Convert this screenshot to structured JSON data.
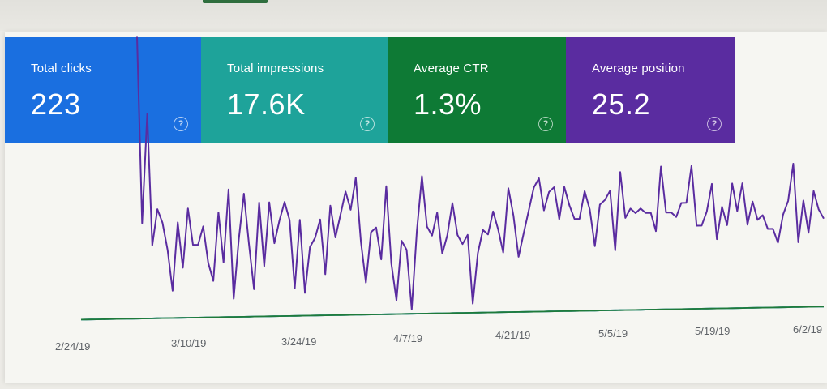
{
  "summary_cards": [
    {
      "label": "Total clicks",
      "value": "223",
      "color": "#1a6fe0"
    },
    {
      "label": "Total impressions",
      "value": "17.6K",
      "color": "#1ea39a"
    },
    {
      "label": "Average CTR",
      "value": "1.3%",
      "color": "#0e7a35"
    },
    {
      "label": "Average position",
      "value": "25.2",
      "color": "#5a2ca0"
    }
  ],
  "help_glyph": "?",
  "chart_data": {
    "type": "line",
    "x_tick_labels": [
      "2/24/19",
      "3/10/19",
      "3/24/19",
      "4/7/19",
      "4/21/19",
      "5/5/19",
      "5/19/19",
      "6/2/19"
    ],
    "y_axis": "none",
    "grid": false,
    "series": [
      {
        "color": "#5a2ca0",
        "values": [
          null,
          null,
          null,
          null,
          null,
          null,
          null,
          null,
          null,
          null,
          null,
          63,
          22,
          46,
          17,
          25,
          22,
          16,
          7,
          22,
          12,
          25,
          17,
          17,
          21,
          13,
          9,
          24,
          13,
          29,
          5,
          18,
          28,
          17,
          7,
          26,
          12,
          26,
          17,
          22,
          26,
          22,
          7,
          22,
          6,
          16,
          18,
          22,
          10,
          25,
          18,
          23,
          28,
          24,
          31,
          17,
          8,
          19,
          20,
          13,
          29,
          12,
          4,
          17,
          15,
          2,
          19,
          31,
          20,
          18,
          23,
          14,
          18,
          25,
          18,
          16,
          18,
          3,
          14,
          19,
          18,
          23,
          19,
          14,
          28,
          22,
          13,
          18,
          23,
          28,
          30,
          23,
          27,
          28,
          21,
          28,
          24,
          21,
          21,
          27,
          23,
          15,
          24,
          25,
          27,
          14,
          31,
          21,
          23,
          22,
          23,
          22,
          22,
          18,
          32,
          22,
          22,
          21,
          24,
          24,
          32,
          19,
          19,
          22,
          28,
          16,
          23,
          19,
          28,
          22,
          28,
          19,
          24,
          20,
          21,
          18,
          18,
          15,
          21,
          24,
          32,
          15,
          24,
          17,
          26,
          22,
          20
        ]
      },
      {
        "color": "#4a70d8",
        "values": [
          1,
          1,
          1,
          1,
          1,
          1,
          1,
          1,
          1,
          1,
          1,
          1,
          1,
          1,
          1,
          1,
          1,
          1,
          1,
          1,
          1,
          1,
          1,
          1,
          1,
          1,
          1,
          1,
          1,
          1,
          1,
          1,
          1,
          1,
          1,
          1,
          1,
          1,
          1,
          1,
          1,
          1,
          1,
          1,
          1,
          1,
          1,
          1,
          1,
          1,
          1,
          1,
          1,
          1,
          1,
          1,
          1,
          1,
          1,
          1,
          1,
          1,
          1,
          1,
          1,
          1,
          1,
          1,
          1,
          1,
          1,
          1,
          1,
          1,
          1,
          1,
          1,
          1,
          1,
          1,
          1,
          1,
          1,
          1,
          1,
          1,
          1,
          1,
          1,
          1,
          1,
          1,
          1,
          1,
          1,
          1,
          1,
          1,
          1,
          1,
          1,
          1,
          1,
          1,
          1,
          1,
          1,
          1,
          1,
          1,
          1,
          1,
          1,
          1,
          1,
          1,
          1,
          1,
          1,
          1,
          1,
          1,
          1,
          1,
          1,
          1,
          1,
          1,
          1,
          1,
          1,
          1,
          1,
          1,
          1,
          1,
          1,
          1,
          1,
          1,
          1,
          1,
          1,
          1,
          1,
          1,
          1
        ]
      },
      {
        "color": "#22a99a",
        "values": [
          1,
          1,
          1,
          1,
          1,
          1,
          1,
          1,
          1,
          1,
          1,
          1,
          1,
          1,
          1,
          1,
          1,
          1,
          1,
          1,
          1,
          1,
          1,
          1,
          1,
          1,
          1,
          1,
          1,
          1,
          1,
          1,
          1,
          1,
          1,
          1,
          1,
          1,
          1,
          1,
          1,
          1,
          1,
          1,
          1,
          1,
          1,
          1,
          1,
          1,
          1,
          1,
          1,
          1,
          1,
          1,
          1,
          1,
          1,
          1,
          1,
          1,
          1,
          1,
          1,
          1,
          1,
          1,
          1,
          1,
          1,
          1,
          1,
          1,
          1,
          1,
          1,
          1,
          1,
          1,
          1,
          1,
          1,
          1,
          1,
          1,
          1,
          1,
          1,
          1,
          1,
          1,
          1,
          1,
          1,
          1,
          1,
          1,
          1,
          1,
          1,
          1,
          1,
          1,
          1,
          1,
          1,
          1,
          1,
          1,
          1,
          1,
          1,
          1,
          1,
          1,
          1,
          1,
          1,
          1,
          1,
          1,
          1,
          1,
          1,
          1,
          1,
          1,
          1,
          1,
          1,
          1,
          1,
          1,
          1,
          1,
          1,
          1,
          1,
          1,
          1,
          1,
          1,
          1,
          1,
          1,
          1
        ]
      },
      {
        "color": "#1f7a3a",
        "values": [
          1,
          1,
          1,
          1,
          1,
          1,
          1,
          1,
          1,
          1,
          1,
          1,
          1,
          1,
          1,
          1,
          1,
          1,
          1,
          1,
          1,
          1,
          1,
          1,
          1,
          1,
          1,
          1,
          1,
          1,
          1,
          1,
          1,
          1,
          1,
          1,
          1,
          1,
          1,
          1,
          1,
          1,
          1,
          1,
          1,
          1,
          1,
          1,
          1,
          1,
          1,
          1,
          1,
          1,
          1,
          1,
          1,
          1,
          1,
          1,
          1,
          1,
          1,
          1,
          1,
          1,
          1,
          1,
          1,
          1,
          1,
          1,
          1,
          1,
          1,
          1,
          1,
          1,
          1,
          1,
          1,
          1,
          1,
          1,
          1,
          1,
          1,
          1,
          1,
          1,
          1,
          1,
          1,
          1,
          1,
          1,
          1,
          1,
          1,
          1,
          1,
          1,
          1,
          1,
          1,
          1,
          1,
          1,
          1,
          1,
          1,
          1,
          1,
          1,
          1,
          1,
          1,
          1,
          1,
          1,
          1,
          1,
          1,
          1,
          1,
          1,
          1,
          1,
          1,
          1,
          1,
          1,
          1,
          1,
          1,
          1,
          1,
          1,
          1,
          1,
          1,
          1,
          1,
          1,
          1,
          1,
          1
        ]
      }
    ]
  }
}
